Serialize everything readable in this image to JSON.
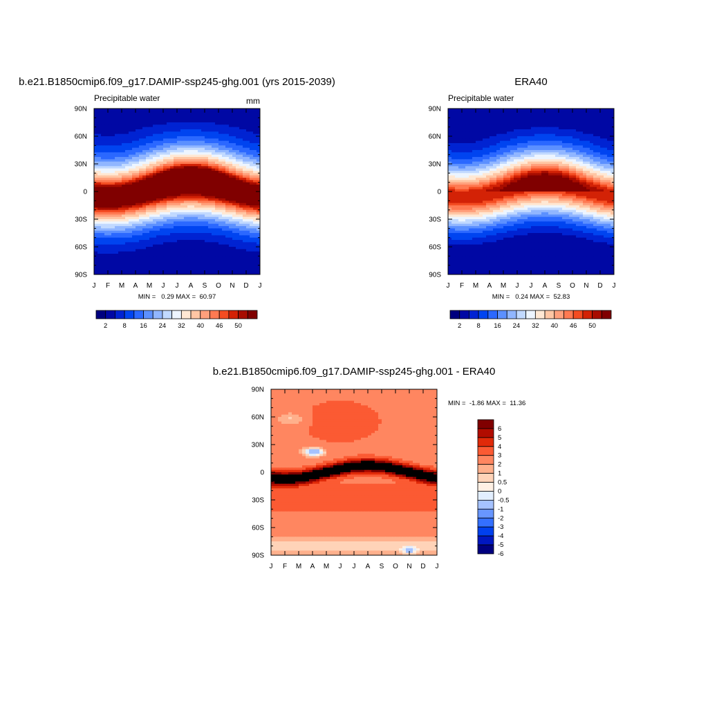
{
  "colors": {
    "abs_scale": [
      "#00007f",
      "#0008a4",
      "#0023d2",
      "#0044f0",
      "#2b68ff",
      "#5c90ff",
      "#91b6ff",
      "#c1d9ff",
      "#edf5ff",
      "#ffe8d4",
      "#ffc6a4",
      "#ffa07c",
      "#ff7a52",
      "#f44c22",
      "#d32206",
      "#a80c00",
      "#800000"
    ],
    "diff_scale": [
      "#00007f",
      "#0017c0",
      "#0040ee",
      "#3470ff",
      "#6896ff",
      "#a5c2ff",
      "#e2eeff",
      "#fff0e4",
      "#ffd3b8",
      "#ffb08c",
      "#ff8660",
      "#fb5a33",
      "#e02a09",
      "#b10c00",
      "#800000"
    ]
  },
  "chart_data": [
    {
      "type": "contour",
      "id": "model",
      "title": "b.e21.B1850cmip6.f09_g17.DAMIP-ssp245-ghg.001 (yrs 2015-2039)",
      "left_label": "Precipitable water",
      "right_label": "mm",
      "x_ticks": [
        "J",
        "F",
        "M",
        "A",
        "M",
        "J",
        "J",
        "A",
        "S",
        "O",
        "N",
        "D",
        "J"
      ],
      "y_ticks": [
        "90N",
        "60N",
        "30N",
        "0",
        "30S",
        "60S",
        "90S"
      ],
      "y_range": [
        -90,
        90
      ],
      "stats": "MIN =   0.29 MAX =  60.97",
      "min": 0.29,
      "max": 60.97,
      "levels": [
        2,
        5,
        8,
        12,
        16,
        20,
        24,
        28,
        32,
        36,
        40,
        43,
        46,
        48,
        50,
        52
      ],
      "colorbar_labels": [
        "2",
        "8",
        "16",
        "24",
        "32",
        "40",
        "46",
        "50"
      ]
    },
    {
      "type": "contour",
      "id": "obs",
      "title": "ERA40",
      "left_label": "Precipitable water",
      "right_label": "",
      "x_ticks": [
        "J",
        "F",
        "M",
        "A",
        "M",
        "J",
        "J",
        "A",
        "S",
        "O",
        "N",
        "D",
        "J"
      ],
      "y_ticks": [
        "90N",
        "60N",
        "30N",
        "0",
        "30S",
        "60S",
        "90S"
      ],
      "y_range": [
        -90,
        90
      ],
      "stats": "MIN =   0.24 MAX =  52.83",
      "min": 0.24,
      "max": 52.83,
      "levels": [
        2,
        5,
        8,
        12,
        16,
        20,
        24,
        28,
        32,
        36,
        40,
        43,
        46,
        48,
        50,
        52
      ],
      "colorbar_labels": [
        "2",
        "8",
        "16",
        "24",
        "32",
        "40",
        "46",
        "50"
      ]
    },
    {
      "type": "contour",
      "id": "diff",
      "title": "b.e21.B1850cmip6.f09_g17.DAMIP-ssp245-ghg.001 - ERA40",
      "left_label": "",
      "right_label": "",
      "x_ticks": [
        "J",
        "F",
        "M",
        "A",
        "M",
        "J",
        "J",
        "A",
        "S",
        "O",
        "N",
        "D",
        "J"
      ],
      "y_ticks": [
        "90N",
        "60N",
        "30N",
        "0",
        "30S",
        "60S",
        "90S"
      ],
      "y_range": [
        -90,
        90
      ],
      "stats": "MIN =  -1.86 MAX =  11.36",
      "min": -1.86,
      "max": 11.36,
      "levels": [
        -6,
        -5,
        -4,
        -3,
        -2,
        -1,
        -0.5,
        0,
        0.5,
        1,
        2,
        3,
        4,
        5,
        6
      ],
      "colorbar_labels": [
        "6",
        "5",
        "4",
        "3",
        "2",
        "1",
        "0.5",
        "0",
        "-0.5",
        "-1",
        "-2",
        "-3",
        "-4",
        "-5",
        "-6"
      ]
    }
  ]
}
